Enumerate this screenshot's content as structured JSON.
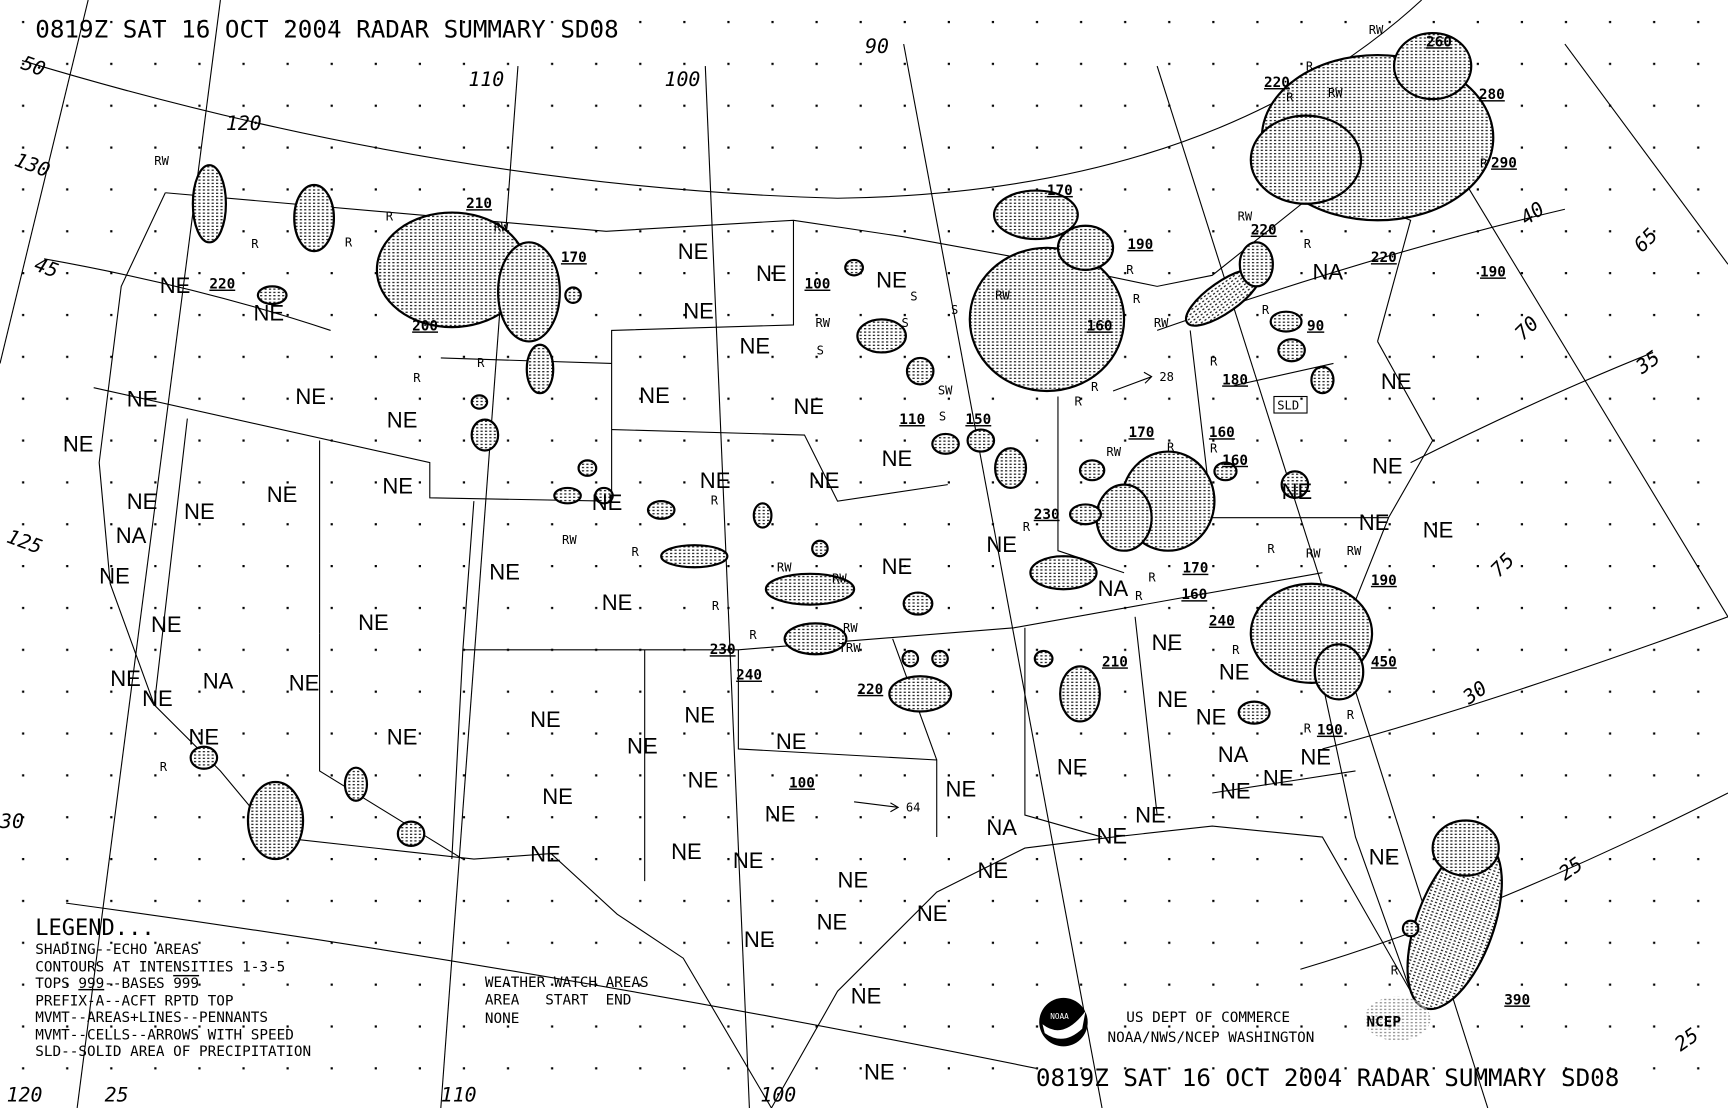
{
  "header": {
    "title": "0819Z SAT 16 OCT 2004 RADAR SUMMARY SD08"
  },
  "footer": {
    "title": "0819Z SAT 16 OCT 2004 RADAR SUMMARY SD08",
    "agency_line1": "US DEPT OF COMMERCE",
    "agency_line2": "NOAA/NWS/NCEP WASHINGTON",
    "noaa_logo_text": "NOAA",
    "ncep_logo_text": "NCEP"
  },
  "legend": {
    "heading": "LEGEND...",
    "line1": "SHADING--ECHO AREAS",
    "line2": "CONTOURS AT INTENSITIES 1-3-5",
    "line3_prefix": "TOPS ",
    "line3_tops": "999",
    "line3_mid": "--BASES ",
    "line3_bases": "999",
    "line4": "PREFIX-A--ACFT RPTD TOP",
    "line5": "MVMT--AREAS+LINES--PENNANTS",
    "line6": "MVMT--CELLS--ARROWS WITH SPEED",
    "line7": "SLD--SOLID AREA OF PRECIPITATION"
  },
  "watch": {
    "heading": "WEATHER WATCH AREAS",
    "columns": "AREA   START  END",
    "value": "NONE"
  },
  "map": {
    "grid_labels": [
      "50",
      "45",
      "130",
      "125",
      "120",
      "110",
      "100",
      "90",
      "40",
      "65",
      "70",
      "75",
      "35",
      "30",
      "25",
      "120",
      "25",
      "110",
      "100",
      "25",
      "30"
    ],
    "coverage_labels": [
      "NE",
      "NE",
      "NE",
      "NE",
      "NE",
      "NE",
      "NE",
      "NE",
      "NE",
      "NE",
      "NA",
      "NE",
      "NE",
      "NE",
      "NA",
      "NE",
      "NE",
      "NE",
      "NE",
      "NE",
      "NE",
      "NE",
      "NE",
      "NE",
      "NE",
      "NE",
      "NE",
      "NE",
      "NE",
      "NE",
      "NE",
      "NE",
      "NE",
      "NE",
      "NE",
      "NE",
      "NE",
      "NE",
      "NE",
      "NE",
      "NE",
      "NE",
      "NE",
      "NE",
      "NE",
      "NE",
      "NE",
      "NE",
      "NE",
      "NE",
      "NE",
      "NA",
      "NE",
      "NE",
      "NE",
      "NE",
      "NE",
      "NE",
      "NA",
      "NE",
      "NE",
      "NE",
      "NE",
      "NA",
      "NE",
      "NE",
      "NE",
      "NE",
      "NE",
      "NE",
      "NE",
      "NA",
      "NE"
    ],
    "echo_tops": [
      "210",
      "170",
      "200",
      "220",
      "100",
      "170",
      "190",
      "160",
      "110",
      "150",
      "170",
      "160",
      "160",
      "230",
      "170",
      "160",
      "240",
      "190",
      "450",
      "190",
      "210",
      "230",
      "240",
      "220",
      "100",
      "180",
      "90",
      "220",
      "220",
      "190",
      "290",
      "280",
      "260",
      "220",
      "390"
    ],
    "precip_types": [
      "RW",
      "R",
      "R",
      "R",
      "RW",
      "R",
      "R",
      "R",
      "RW",
      "S",
      "S",
      "S",
      "S",
      "RW",
      "SW",
      "S",
      "R",
      "R",
      "R",
      "R",
      "R",
      "RW",
      "R",
      "R",
      "RW",
      "R",
      "R",
      "R",
      "R",
      "R",
      "R",
      "RW",
      "R",
      "R",
      "RW",
      "RW",
      "TRW",
      "RW",
      "R",
      "R",
      "RW",
      "RW",
      "R",
      "R",
      "RW",
      "R",
      "R",
      "RW",
      "R",
      "RW",
      "R",
      "R"
    ],
    "solid_area_label": "SLD",
    "cell_speeds": [
      "28",
      "64"
    ],
    "echo_color": "#000000",
    "background_color": "#ffffff"
  }
}
